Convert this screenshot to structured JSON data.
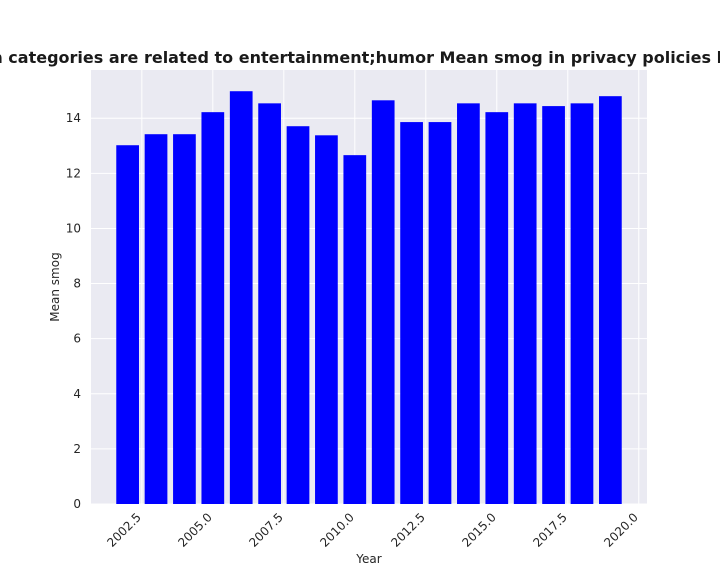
{
  "chart_data": {
    "type": "bar",
    "title": "when categories are related to entertainment;humor Mean smog in privacy policies by Year",
    "xlabel": "Year",
    "ylabel": "Mean smog",
    "x": [
      2002,
      2003,
      2004,
      2005,
      2006,
      2007,
      2008,
      2009,
      2010,
      2011,
      2012,
      2013,
      2014,
      2015,
      2016,
      2017,
      2018,
      2019
    ],
    "values": [
      13.02,
      13.42,
      13.42,
      14.22,
      14.98,
      14.54,
      13.71,
      13.38,
      12.66,
      14.65,
      13.86,
      13.86,
      14.54,
      14.22,
      14.54,
      14.44,
      14.54,
      14.8
    ],
    "color": "#0000ff",
    "xlim": [
      2000.71,
      2020.29
    ],
    "xticks": [
      2002.5,
      {
        "value": 2005,
        "label": "2005.0"
      },
      2007.5,
      {
        "value": 2010,
        "label": "2010.0"
      },
      2012.5,
      {
        "value": 2015,
        "label": "2015.0"
      },
      2017.5,
      {
        "value": 2020,
        "label": "2020.0"
      }
    ],
    "ylim": [
      0,
      15.75
    ],
    "yticks": [
      0,
      2,
      4,
      6,
      8,
      10,
      12,
      14
    ],
    "grid": true
  }
}
